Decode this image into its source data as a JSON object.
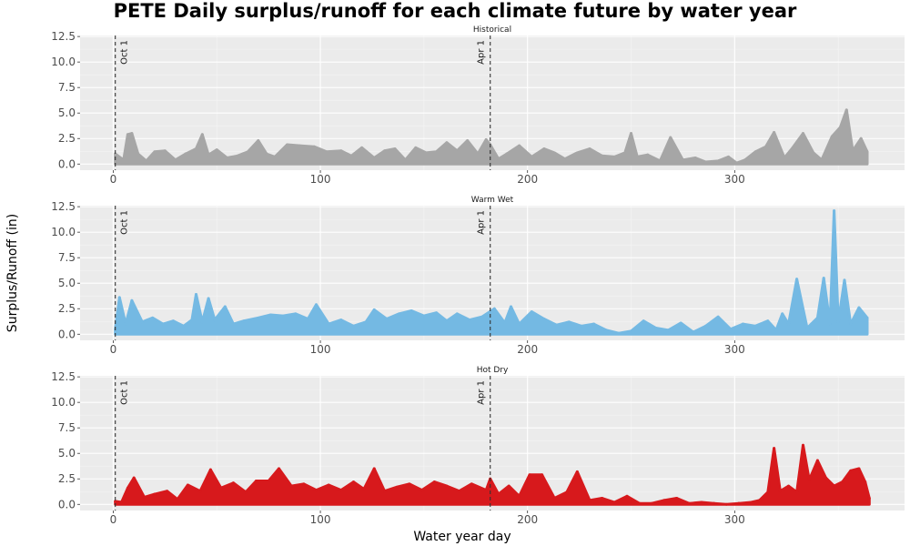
{
  "chart_data": {
    "type": "area",
    "title": "PETE Daily surplus/runoff for each climate future by water year",
    "xlabel": "Water year day",
    "ylabel": "Surplus/Runoff (in)",
    "xlim": [
      -16,
      382
    ],
    "ylim": [
      -0.6,
      12.6
    ],
    "x_ticks": [
      0,
      100,
      200,
      300
    ],
    "y_ticks": [
      0.0,
      2.5,
      5.0,
      7.5,
      10.0,
      12.5
    ],
    "y_tick_labels": [
      "0.0",
      "2.5",
      "5.0",
      "7.5",
      "10.0",
      "12.5"
    ],
    "grid": true,
    "vertical_lines": [
      {
        "x": 1,
        "label": "Oct 1"
      },
      {
        "x": 182,
        "label": "Apr 1"
      }
    ],
    "panels": [
      {
        "name": "Historical",
        "color": "#a6a6a6",
        "x": [
          1,
          5,
          7,
          9,
          12,
          16,
          20,
          25,
          30,
          35,
          40,
          43,
          46,
          50,
          55,
          60,
          65,
          70,
          74,
          78,
          84,
          90,
          97,
          103,
          110,
          115,
          120,
          126,
          131,
          136,
          141,
          146,
          151,
          156,
          161,
          166,
          171,
          176,
          180,
          182,
          186,
          190,
          196,
          202,
          208,
          213,
          218,
          224,
          230,
          236,
          242,
          247,
          250,
          253,
          258,
          264,
          269,
          275,
          281,
          286,
          292,
          297,
          301,
          305,
          310,
          315,
          319,
          324,
          328,
          333,
          338,
          342,
          347,
          351,
          354,
          357,
          361,
          364
        ],
        "values": [
          1.0,
          0.4,
          2.9,
          3.0,
          1.0,
          0.3,
          1.2,
          1.3,
          0.4,
          1.0,
          1.5,
          2.9,
          0.9,
          1.4,
          0.6,
          0.8,
          1.2,
          2.3,
          1.0,
          0.7,
          1.9,
          1.8,
          1.7,
          1.2,
          1.3,
          0.8,
          1.6,
          0.6,
          1.3,
          1.5,
          0.4,
          1.6,
          1.1,
          1.2,
          2.1,
          1.3,
          2.3,
          1.0,
          2.4,
          1.9,
          0.5,
          1.0,
          1.8,
          0.7,
          1.5,
          1.1,
          0.5,
          1.1,
          1.5,
          0.8,
          0.7,
          1.1,
          3.0,
          0.7,
          0.9,
          0.3,
          2.6,
          0.4,
          0.6,
          0.2,
          0.3,
          0.7,
          0.1,
          0.4,
          1.2,
          1.7,
          3.1,
          0.6,
          1.6,
          3.0,
          1.1,
          0.4,
          2.7,
          3.6,
          5.3,
          1.3,
          2.5,
          1.2
        ]
      },
      {
        "name": "Warm Wet",
        "color": "#74b9e3",
        "x": [
          1,
          3,
          6,
          9,
          14,
          19,
          24,
          29,
          34,
          38,
          40,
          43,
          46,
          49,
          54,
          58,
          63,
          70,
          76,
          82,
          88,
          94,
          98,
          104,
          110,
          116,
          122,
          126,
          132,
          138,
          144,
          150,
          156,
          161,
          166,
          172,
          178,
          184,
          189,
          192,
          196,
          202,
          208,
          214,
          220,
          226,
          232,
          238,
          244,
          250,
          256,
          262,
          268,
          274,
          280,
          286,
          292,
          298,
          304,
          310,
          316,
          320,
          323,
          326,
          330,
          335,
          340,
          343,
          346,
          348,
          350,
          353,
          356,
          360,
          364
        ],
        "values": [
          0.5,
          3.6,
          1.0,
          3.3,
          1.2,
          1.6,
          1.0,
          1.3,
          0.8,
          1.4,
          3.9,
          1.2,
          3.5,
          1.4,
          2.7,
          1.0,
          1.3,
          1.6,
          1.9,
          1.8,
          2.0,
          1.5,
          2.9,
          1.0,
          1.4,
          0.8,
          1.2,
          2.4,
          1.5,
          2.0,
          2.3,
          1.8,
          2.1,
          1.3,
          2.0,
          1.4,
          1.7,
          2.5,
          1.1,
          2.7,
          1.0,
          2.2,
          1.5,
          0.9,
          1.2,
          0.8,
          1.0,
          0.4,
          0.1,
          0.3,
          1.3,
          0.6,
          0.4,
          1.1,
          0.2,
          0.8,
          1.7,
          0.5,
          1.0,
          0.8,
          1.3,
          0.4,
          2.0,
          1.0,
          5.4,
          0.6,
          1.6,
          5.5,
          1.0,
          12.1,
          1.2,
          5.3,
          1.0,
          2.6,
          1.6
        ]
      },
      {
        "name": "Hot Dry",
        "color": "#d7191c",
        "x": [
          1,
          4,
          7,
          10,
          15,
          20,
          26,
          31,
          36,
          42,
          47,
          52,
          58,
          64,
          69,
          75,
          80,
          86,
          92,
          98,
          104,
          110,
          116,
          121,
          126,
          131,
          137,
          143,
          149,
          155,
          161,
          167,
          173,
          180,
          182,
          186,
          191,
          196,
          201,
          207,
          213,
          219,
          224,
          230,
          236,
          242,
          248,
          254,
          260,
          266,
          272,
          278,
          284,
          290,
          296,
          302,
          308,
          312,
          316,
          319,
          322,
          326,
          330,
          333,
          336,
          340,
          344,
          348,
          352,
          356,
          360,
          363,
          365
        ],
        "values": [
          0.3,
          0.2,
          1.6,
          2.6,
          0.7,
          1.0,
          1.3,
          0.5,
          1.9,
          1.3,
          3.4,
          1.6,
          2.1,
          1.2,
          2.3,
          2.3,
          3.5,
          1.8,
          2.0,
          1.4,
          1.9,
          1.4,
          2.2,
          1.5,
          3.5,
          1.3,
          1.7,
          2.0,
          1.4,
          2.2,
          1.8,
          1.3,
          2.0,
          1.4,
          2.5,
          1.0,
          1.8,
          0.8,
          2.9,
          2.9,
          0.6,
          1.2,
          3.2,
          0.4,
          0.6,
          0.2,
          0.8,
          0.1,
          0.1,
          0.4,
          0.6,
          0.1,
          0.2,
          0.1,
          0.0,
          0.1,
          0.2,
          0.4,
          1.2,
          5.5,
          1.3,
          1.8,
          1.2,
          5.8,
          2.4,
          4.3,
          2.6,
          1.8,
          2.2,
          3.3,
          3.5,
          2.2,
          0.6
        ]
      }
    ]
  }
}
